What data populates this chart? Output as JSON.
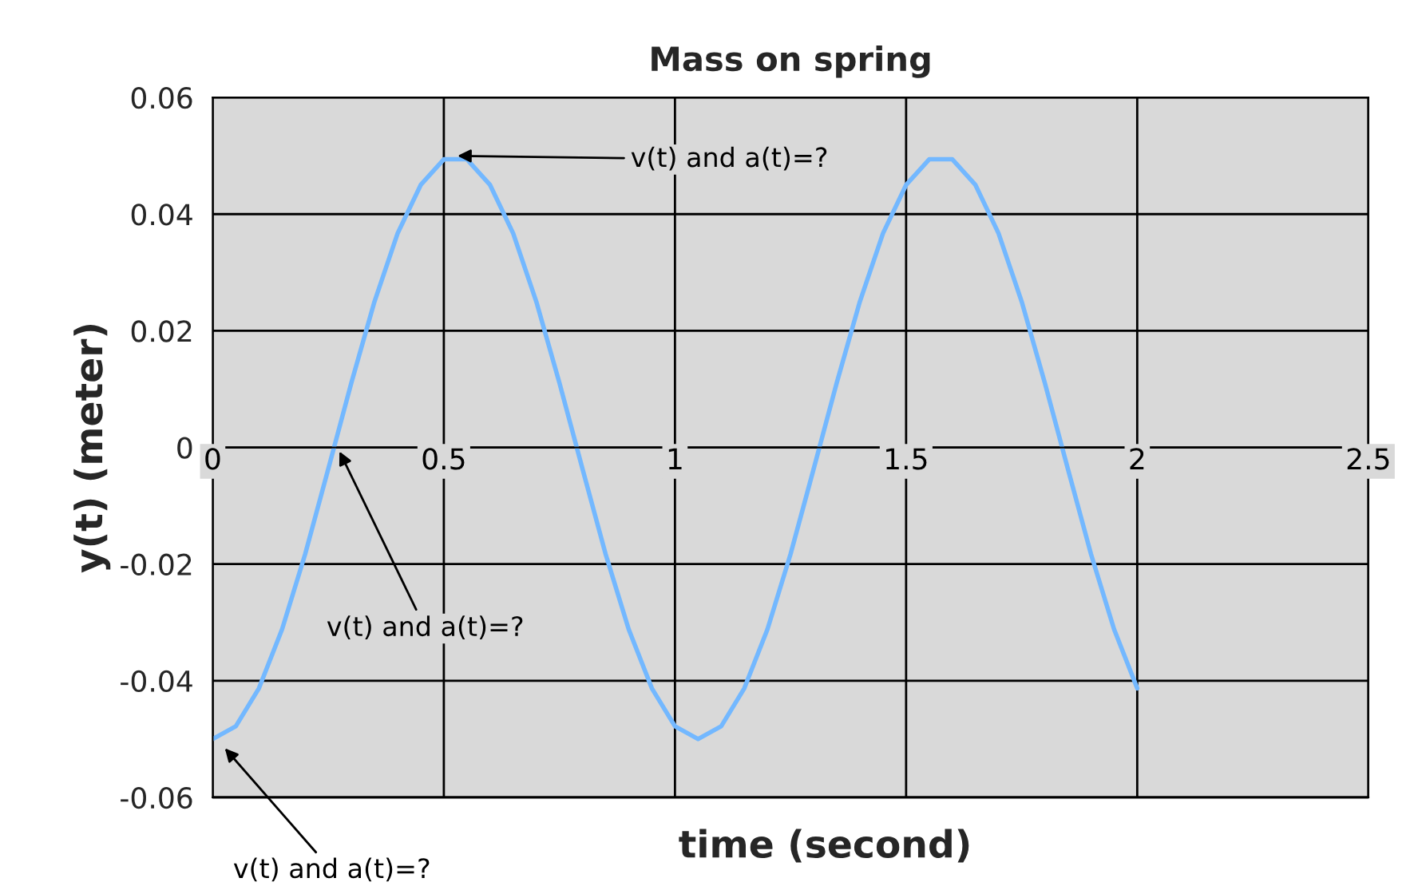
{
  "chart_data": {
    "type": "line",
    "title": "Mass on spring",
    "xlabel": "time (second)",
    "ylabel": "y(t) (meter)",
    "x": [
      0,
      0.05,
      0.1,
      0.15,
      0.2,
      0.25,
      0.3,
      0.35,
      0.4,
      0.45,
      0.5,
      0.55,
      0.6,
      0.65,
      0.7,
      0.75,
      0.8,
      0.85,
      0.9,
      0.95,
      1,
      1.05,
      1.1,
      1.15,
      1.2,
      1.25,
      1.3,
      1.35,
      1.4,
      1.45,
      1.5,
      1.55,
      1.6,
      1.65,
      1.7,
      1.75,
      1.8,
      1.85,
      1.9,
      1.95,
      2
    ],
    "series": [
      {
        "color": "#73b8ff",
        "values": [
          -0.05,
          -0.0478,
          -0.0413,
          -0.0312,
          -0.0183,
          -0.0037,
          0.0111,
          0.025,
          0.0367,
          0.045,
          0.0494,
          0.0494,
          0.045,
          0.0367,
          0.025,
          0.0111,
          -0.0037,
          -0.0183,
          -0.0312,
          -0.0413,
          -0.0478,
          -0.05,
          -0.0478,
          -0.0413,
          -0.0312,
          -0.0183,
          -0.0037,
          0.0111,
          0.025,
          0.0367,
          0.045,
          0.0494,
          0.0494,
          0.045,
          0.0367,
          0.025,
          0.0111,
          -0.0037,
          -0.0183,
          -0.0312,
          -0.0413
        ]
      }
    ],
    "xlim": [
      0,
      2.5
    ],
    "xticks": [
      0,
      0.5,
      1,
      1.5,
      2,
      2.5
    ],
    "ylim": [
      -0.06,
      0.06
    ],
    "yticks": [
      {
        "value": -0.06,
        "label": "-0.06"
      },
      {
        "value": -0.04,
        "label": "-0.04"
      },
      {
        "value": -0.02,
        "label": "-0.02"
      },
      0,
      0.02,
      0.04,
      0.06
    ],
    "grid": true,
    "marker": "none",
    "line_style": "solid",
    "annotations": [
      {
        "text": "v(t) and a(t)=?",
        "x": 0.52,
        "y": 0.05
      },
      {
        "text": "v(t) and a(t)=?",
        "x": 0.27,
        "y": 0
      },
      {
        "text": "v(t) and a(t)=?",
        "x": 0.02,
        "y": -0.051
      }
    ]
  }
}
